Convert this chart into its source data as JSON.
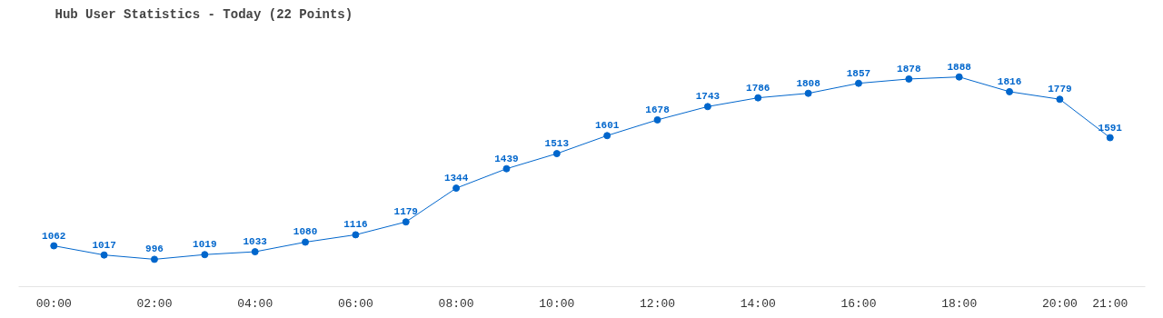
{
  "chart_data": {
    "type": "line",
    "title": "Hub User Statistics - Today (22 Points)",
    "x": [
      0,
      1,
      2,
      3,
      4,
      5,
      6,
      7,
      8,
      9,
      10,
      11,
      12,
      13,
      14,
      15,
      16,
      17,
      18,
      19,
      20,
      21
    ],
    "series": [
      {
        "color": "#0066cc",
        "values": [
          1062,
          1017,
          996,
          1019,
          1033,
          1080,
          1116,
          1179,
          1344,
          1439,
          1513,
          1601,
          1678,
          1743,
          1786,
          1808,
          1857,
          1878,
          1888,
          1816,
          1779,
          1591
        ]
      }
    ],
    "xlim": [
      -0.7,
      21.7
    ],
    "xticks": [
      {
        "value": 0,
        "label": "00:00"
      },
      {
        "value": 2,
        "label": "02:00"
      },
      {
        "value": 4,
        "label": "04:00"
      },
      {
        "value": 6,
        "label": "06:00"
      },
      {
        "value": 8,
        "label": "08:00"
      },
      {
        "value": 10,
        "label": "10:00"
      },
      {
        "value": 12,
        "label": "12:00"
      },
      {
        "value": 14,
        "label": "14:00"
      },
      {
        "value": 16,
        "label": "16:00"
      },
      {
        "value": 18,
        "label": "18:00"
      },
      {
        "value": 20,
        "label": "20:00"
      },
      {
        "value": 21,
        "label": "21:00"
      }
    ],
    "tick_labels": "x",
    "data_labels": true,
    "marker": "circle",
    "line_style": "solid",
    "grid": false
  }
}
